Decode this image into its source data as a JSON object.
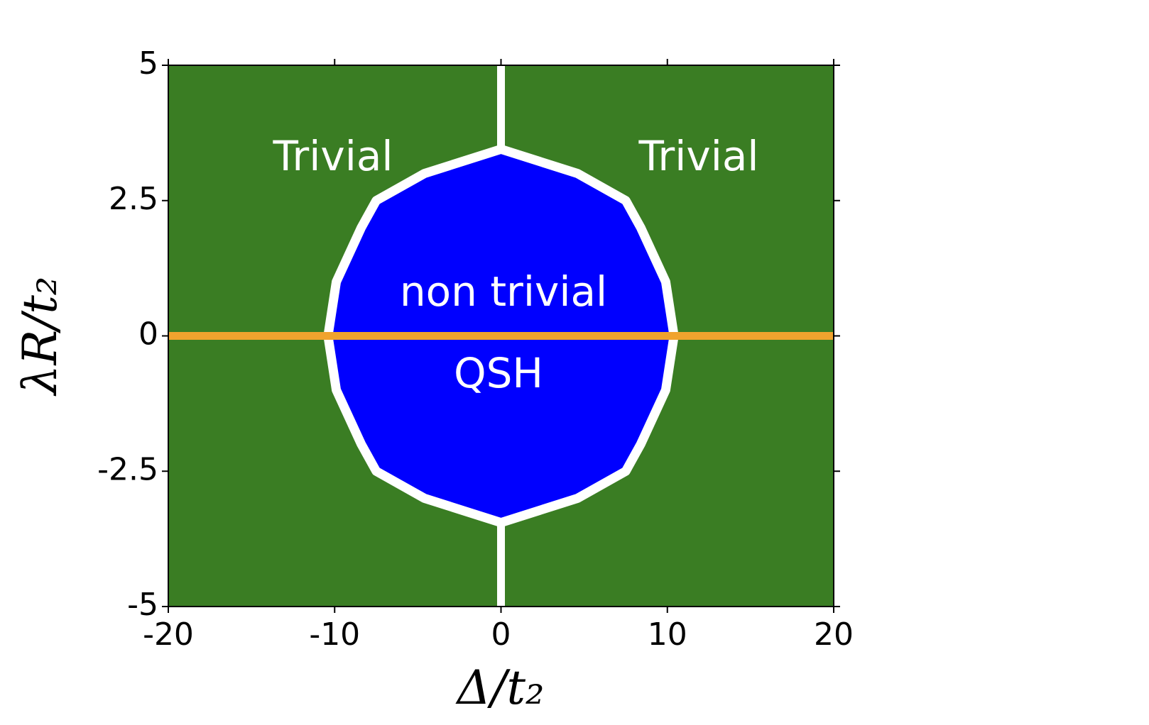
{
  "chart_data": {
    "type": "phase",
    "xlabel": "Δ/t₂",
    "ylabel": "λR/t₂",
    "xlim": [
      -20,
      20
    ],
    "ylim": [
      -5,
      5
    ],
    "xticks": [
      -20,
      -10,
      0,
      10,
      20
    ],
    "yticks": [
      -5,
      -2.5,
      0,
      2.5,
      5
    ],
    "background_color": "#3a7d23",
    "regions": [
      {
        "color": "#0000ff",
        "x": [
          0,
          4.6,
          7.5,
          8.4,
          9.9,
          10.4,
          9.9,
          8.4,
          7.5,
          4.6,
          0,
          -4.6,
          -7.5,
          -8.4,
          -9.9,
          -10.4,
          -9.9,
          -8.4,
          -7.5,
          -4.6,
          0
        ],
        "y": [
          3.45,
          3,
          2.5,
          2,
          1,
          0,
          -1,
          -2,
          -2.5,
          -3,
          -3.45,
          -3,
          -2.5,
          -2,
          -1,
          0,
          1,
          2,
          2.5,
          3,
          3.45
        ]
      }
    ],
    "series": [
      {
        "color": "#ffffff",
        "x": [
          0,
          0
        ],
        "y": [
          3.45,
          5
        ]
      },
      {
        "color": "#ffffff",
        "x": [
          0,
          0
        ],
        "y": [
          -3.45,
          -5
        ]
      },
      {
        "color": "#f0a32e",
        "x": [
          -20,
          20
        ],
        "y": [
          0,
          0
        ]
      }
    ],
    "annotations": [
      "Trivial",
      "Trivial",
      "non trivial",
      "QSH"
    ]
  }
}
